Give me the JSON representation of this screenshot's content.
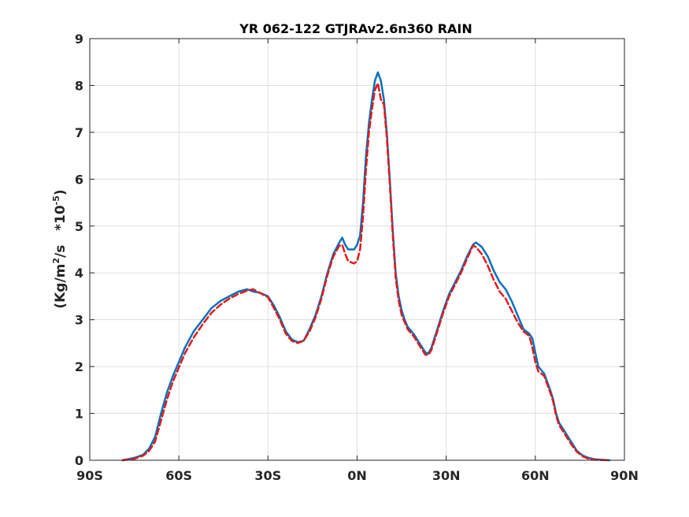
{
  "chart_data": {
    "type": "line",
    "title": "YR 062-122 GTJRAv2.6n360 RAIN",
    "ylabel_main": "(Kg/m",
    "ylabel_sup1": "2",
    "ylabel_mid": "/s   *10",
    "ylabel_sup2": "-5",
    "ylabel_end": ")",
    "xlim": [
      -90,
      90
    ],
    "ylim": [
      0,
      9
    ],
    "grid": true,
    "x_ticks": [
      -90,
      -60,
      -30,
      0,
      30,
      60,
      90
    ],
    "x_tick_labels": [
      "90S",
      "60S",
      "30S",
      "0N",
      "30N",
      "60N",
      "90N"
    ],
    "y_ticks": [
      0,
      1,
      2,
      3,
      4,
      5,
      6,
      7,
      8,
      9
    ],
    "y_tick_labels": [
      "0",
      "1",
      "2",
      "3",
      "4",
      "5",
      "6",
      "7",
      "8",
      "9"
    ],
    "series": [
      {
        "color": "#0072BD",
        "style": "solid",
        "points": [
          [
            -79,
            0.0
          ],
          [
            -75,
            0.05
          ],
          [
            -72,
            0.12
          ],
          [
            -70,
            0.25
          ],
          [
            -68,
            0.5
          ],
          [
            -66,
            1.0
          ],
          [
            -64,
            1.45
          ],
          [
            -62,
            1.8
          ],
          [
            -60,
            2.1
          ],
          [
            -58,
            2.4
          ],
          [
            -55,
            2.75
          ],
          [
            -52,
            3.0
          ],
          [
            -49,
            3.25
          ],
          [
            -46,
            3.4
          ],
          [
            -43,
            3.5
          ],
          [
            -40,
            3.6
          ],
          [
            -37,
            3.65
          ],
          [
            -35,
            3.6
          ],
          [
            -33,
            3.58
          ],
          [
            -30,
            3.5
          ],
          [
            -28,
            3.3
          ],
          [
            -26,
            3.05
          ],
          [
            -24,
            2.75
          ],
          [
            -22,
            2.58
          ],
          [
            -20,
            2.52
          ],
          [
            -18,
            2.55
          ],
          [
            -16,
            2.8
          ],
          [
            -14,
            3.1
          ],
          [
            -12,
            3.5
          ],
          [
            -10,
            4.0
          ],
          [
            -8,
            4.4
          ],
          [
            -6,
            4.65
          ],
          [
            -5,
            4.75
          ],
          [
            -4,
            4.6
          ],
          [
            -3,
            4.5
          ],
          [
            -1,
            4.5
          ],
          [
            0,
            4.6
          ],
          [
            1,
            4.8
          ],
          [
            2,
            5.5
          ],
          [
            3,
            6.5
          ],
          [
            4,
            7.2
          ],
          [
            5,
            7.7
          ],
          [
            6,
            8.1
          ],
          [
            7,
            8.28
          ],
          [
            8,
            8.1
          ],
          [
            9,
            7.7
          ],
          [
            10,
            7.0
          ],
          [
            11,
            6.0
          ],
          [
            12,
            4.9
          ],
          [
            13,
            4.0
          ],
          [
            14,
            3.5
          ],
          [
            15,
            3.2
          ],
          [
            16,
            3.0
          ],
          [
            17,
            2.85
          ],
          [
            19,
            2.7
          ],
          [
            21,
            2.5
          ],
          [
            23,
            2.3
          ],
          [
            24,
            2.28
          ],
          [
            25,
            2.4
          ],
          [
            27,
            2.8
          ],
          [
            29,
            3.2
          ],
          [
            31,
            3.55
          ],
          [
            33,
            3.8
          ],
          [
            35,
            4.05
          ],
          [
            37,
            4.35
          ],
          [
            39,
            4.6
          ],
          [
            40,
            4.65
          ],
          [
            42,
            4.55
          ],
          [
            44,
            4.35
          ],
          [
            46,
            4.05
          ],
          [
            48,
            3.8
          ],
          [
            50,
            3.65
          ],
          [
            52,
            3.4
          ],
          [
            54,
            3.1
          ],
          [
            56,
            2.8
          ],
          [
            58,
            2.7
          ],
          [
            59,
            2.6
          ],
          [
            60,
            2.3
          ],
          [
            61,
            2.0
          ],
          [
            63,
            1.85
          ],
          [
            65,
            1.5
          ],
          [
            66,
            1.3
          ],
          [
            67,
            1.0
          ],
          [
            68,
            0.8
          ],
          [
            70,
            0.6
          ],
          [
            72,
            0.4
          ],
          [
            74,
            0.2
          ],
          [
            76,
            0.1
          ],
          [
            78,
            0.05
          ],
          [
            80,
            0.02
          ],
          [
            85,
            0.0
          ]
        ]
      },
      {
        "color": "#E41A1C",
        "style": "dashed",
        "points": [
          [
            -79,
            0.0
          ],
          [
            -75,
            0.03
          ],
          [
            -72,
            0.1
          ],
          [
            -70,
            0.2
          ],
          [
            -68,
            0.4
          ],
          [
            -66,
            0.85
          ],
          [
            -64,
            1.3
          ],
          [
            -62,
            1.68
          ],
          [
            -60,
            1.98
          ],
          [
            -58,
            2.28
          ],
          [
            -55,
            2.62
          ],
          [
            -52,
            2.9
          ],
          [
            -49,
            3.15
          ],
          [
            -46,
            3.32
          ],
          [
            -43,
            3.45
          ],
          [
            -40,
            3.55
          ],
          [
            -37,
            3.62
          ],
          [
            -35,
            3.65
          ],
          [
            -33,
            3.58
          ],
          [
            -30,
            3.48
          ],
          [
            -28,
            3.25
          ],
          [
            -26,
            3.0
          ],
          [
            -24,
            2.7
          ],
          [
            -22,
            2.55
          ],
          [
            -20,
            2.5
          ],
          [
            -18,
            2.55
          ],
          [
            -16,
            2.75
          ],
          [
            -14,
            3.05
          ],
          [
            -12,
            3.45
          ],
          [
            -10,
            3.95
          ],
          [
            -8,
            4.35
          ],
          [
            -6,
            4.58
          ],
          [
            -5,
            4.6
          ],
          [
            -4,
            4.4
          ],
          [
            -3,
            4.25
          ],
          [
            -1,
            4.2
          ],
          [
            0,
            4.25
          ],
          [
            1,
            4.5
          ],
          [
            2,
            5.2
          ],
          [
            3,
            6.2
          ],
          [
            4,
            7.0
          ],
          [
            5,
            7.5
          ],
          [
            6,
            7.9
          ],
          [
            7,
            8.05
          ],
          [
            8,
            7.7
          ],
          [
            9,
            7.6
          ],
          [
            10,
            6.9
          ],
          [
            11,
            5.9
          ],
          [
            12,
            4.8
          ],
          [
            13,
            3.9
          ],
          [
            14,
            3.4
          ],
          [
            15,
            3.1
          ],
          [
            16,
            2.95
          ],
          [
            17,
            2.8
          ],
          [
            19,
            2.65
          ],
          [
            21,
            2.45
          ],
          [
            23,
            2.25
          ],
          [
            24,
            2.25
          ],
          [
            25,
            2.35
          ],
          [
            27,
            2.75
          ],
          [
            29,
            3.15
          ],
          [
            31,
            3.5
          ],
          [
            33,
            3.75
          ],
          [
            35,
            4.0
          ],
          [
            37,
            4.3
          ],
          [
            39,
            4.58
          ],
          [
            40,
            4.55
          ],
          [
            42,
            4.4
          ],
          [
            44,
            4.15
          ],
          [
            46,
            3.85
          ],
          [
            48,
            3.6
          ],
          [
            50,
            3.45
          ],
          [
            52,
            3.2
          ],
          [
            54,
            2.95
          ],
          [
            56,
            2.75
          ],
          [
            58,
            2.65
          ],
          [
            59,
            2.4
          ],
          [
            60,
            2.1
          ],
          [
            61,
            1.9
          ],
          [
            63,
            1.8
          ],
          [
            65,
            1.45
          ],
          [
            66,
            1.25
          ],
          [
            67,
            0.95
          ],
          [
            68,
            0.75
          ],
          [
            70,
            0.55
          ],
          [
            72,
            0.35
          ],
          [
            74,
            0.18
          ],
          [
            76,
            0.08
          ],
          [
            78,
            0.03
          ],
          [
            80,
            0.01
          ],
          [
            85,
            0.0
          ]
        ]
      }
    ]
  }
}
